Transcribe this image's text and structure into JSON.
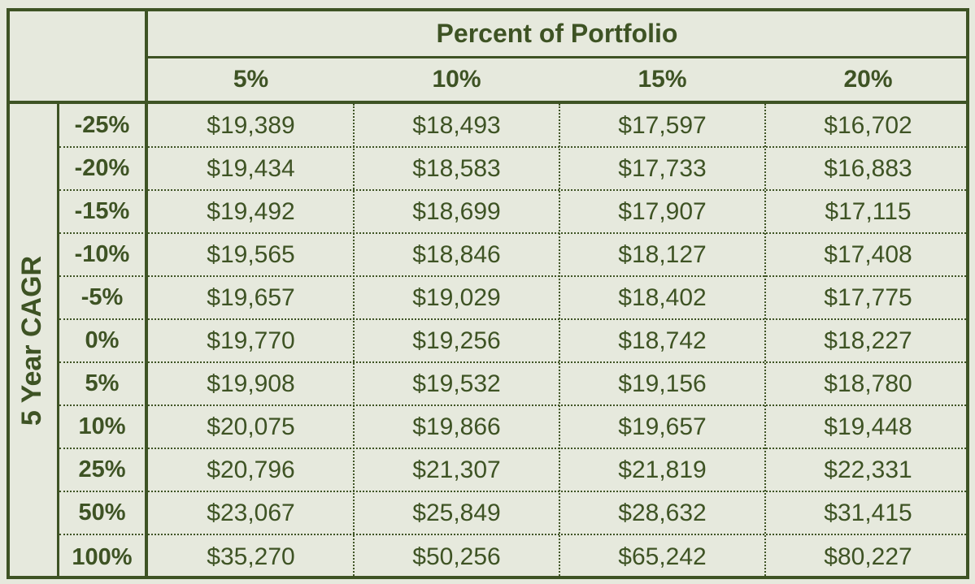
{
  "chart_data": {
    "type": "table",
    "column_group_label": "Percent of Portfolio",
    "row_group_label": "5 Year CAGR",
    "columns": [
      "5%",
      "10%",
      "15%",
      "20%"
    ],
    "rows": [
      {
        "label": "-25%",
        "cells": [
          "$19,389",
          "$18,493",
          "$17,597",
          "$16,702"
        ]
      },
      {
        "label": "-20%",
        "cells": [
          "$19,434",
          "$18,583",
          "$17,733",
          "$16,883"
        ]
      },
      {
        "label": "-15%",
        "cells": [
          "$19,492",
          "$18,699",
          "$17,907",
          "$17,115"
        ]
      },
      {
        "label": "-10%",
        "cells": [
          "$19,565",
          "$18,846",
          "$18,127",
          "$17,408"
        ]
      },
      {
        "label": "-5%",
        "cells": [
          "$19,657",
          "$19,029",
          "$18,402",
          "$17,775"
        ]
      },
      {
        "label": "0%",
        "cells": [
          "$19,770",
          "$19,256",
          "$18,742",
          "$18,227"
        ]
      },
      {
        "label": "5%",
        "cells": [
          "$19,908",
          "$19,532",
          "$19,156",
          "$18,780"
        ]
      },
      {
        "label": "10%",
        "cells": [
          "$20,075",
          "$19,866",
          "$19,657",
          "$19,448"
        ]
      },
      {
        "label": "25%",
        "cells": [
          "$20,796",
          "$21,307",
          "$21,819",
          "$22,331"
        ]
      },
      {
        "label": "50%",
        "cells": [
          "$23,067",
          "$25,849",
          "$28,632",
          "$31,415"
        ]
      },
      {
        "label": "100%",
        "cells": [
          "$35,270",
          "$50,256",
          "$65,242",
          "$80,227"
        ]
      }
    ]
  },
  "colors": {
    "background": "#e6e9dd",
    "border": "#3e5324",
    "text": "#3e5324"
  }
}
